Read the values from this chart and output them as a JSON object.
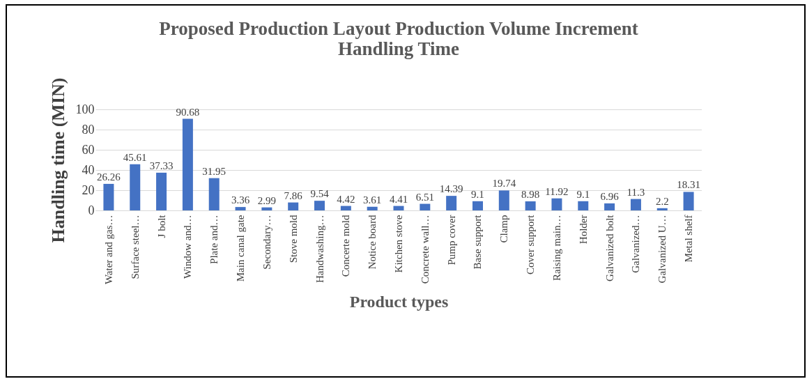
{
  "chart_data": {
    "type": "bar",
    "title": [
      "Proposed Production Layout Production Volume Increment",
      "Handling Time"
    ],
    "xlabel": "Product types",
    "ylabel": "Handling time (MIN)",
    "categories": [
      "Water and gas…",
      "Surface steel…",
      "J bolt",
      "Window and…",
      "Plate and…",
      "Main canal gate",
      "Secondary…",
      "Stove mold",
      "Handwashing…",
      "Concerte mold",
      "Notice board",
      "Kitchen stove",
      "Concrete wall…",
      "Pump cover",
      "Base support",
      "Clamp",
      "Cover support",
      "Raising main…",
      "Holder",
      "Galvanized bolt",
      "Galvanized…",
      "Galvanized U…",
      "Metal shelf"
    ],
    "values": [
      26.26,
      45.61,
      37.33,
      90.68,
      31.95,
      3.36,
      2.99,
      7.86,
      9.54,
      4.42,
      3.61,
      4.41,
      6.51,
      14.39,
      9.1,
      19.74,
      8.98,
      11.92,
      9.1,
      6.96,
      11.3,
      2.2,
      18.31
    ],
    "color": "#4472c4",
    "ylim": [
      0,
      100
    ],
    "yticks": [
      0,
      20,
      40,
      60,
      80,
      100
    ],
    "grid": "y",
    "data_labels": true
  }
}
